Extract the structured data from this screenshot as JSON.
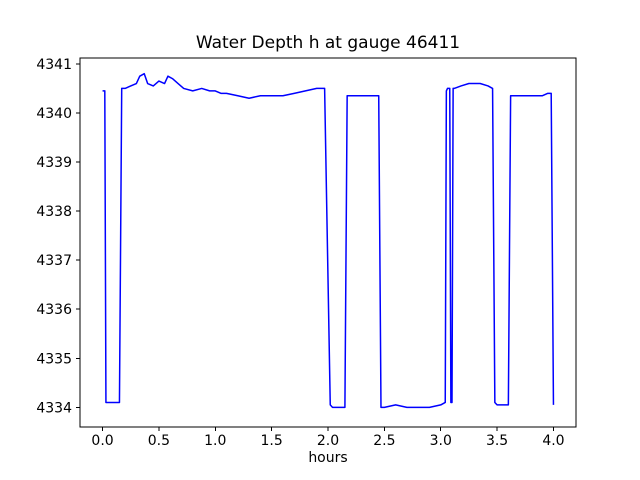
{
  "figure": {
    "background": "#ffffff",
    "axes_color": "#000000"
  },
  "chart_data": {
    "type": "line",
    "title": "Water Depth h at gauge 46411",
    "xlabel": "hours",
    "ylabel": "",
    "line_color": "#0000ff",
    "grid": false,
    "legend": null,
    "xlim": [
      -0.2,
      4.2
    ],
    "ylim": [
      4333.6,
      4341.12
    ],
    "xticks": [
      0.0,
      0.5,
      1.0,
      1.5,
      2.0,
      2.5,
      3.0,
      3.5,
      4.0
    ],
    "xtick_labels": [
      "0.0",
      "0.5",
      "1.0",
      "1.5",
      "2.0",
      "2.5",
      "3.0",
      "3.5",
      "4.0"
    ],
    "yticks": [
      4334,
      4335,
      4336,
      4337,
      4338,
      4339,
      4340,
      4341
    ],
    "ytick_labels": [
      "4334",
      "4335",
      "4336",
      "4337",
      "4338",
      "4339",
      "4340",
      "4341"
    ],
    "x": [
      0.0,
      0.02,
      0.03,
      0.15,
      0.17,
      0.2,
      0.25,
      0.3,
      0.33,
      0.37,
      0.4,
      0.45,
      0.5,
      0.55,
      0.58,
      0.62,
      0.67,
      0.72,
      0.8,
      0.88,
      0.95,
      1.0,
      1.05,
      1.1,
      1.2,
      1.3,
      1.4,
      1.5,
      1.6,
      1.7,
      1.8,
      1.9,
      1.97,
      2.02,
      2.04,
      2.15,
      2.17,
      2.3,
      2.45,
      2.47,
      2.5,
      2.6,
      2.7,
      2.8,
      2.9,
      3.0,
      3.04,
      3.05,
      3.06,
      3.08,
      3.09,
      3.1,
      3.11,
      3.12,
      3.18,
      3.25,
      3.35,
      3.42,
      3.46,
      3.48,
      3.5,
      3.6,
      3.62,
      3.7,
      3.8,
      3.9,
      3.95,
      3.98,
      4.0
    ],
    "y": [
      4340.45,
      4340.45,
      4334.1,
      4334.1,
      4340.5,
      4340.5,
      4340.55,
      4340.6,
      4340.75,
      4340.8,
      4340.6,
      4340.55,
      4340.65,
      4340.6,
      4340.75,
      4340.7,
      4340.6,
      4340.5,
      4340.45,
      4340.5,
      4340.45,
      4340.45,
      4340.4,
      4340.4,
      4340.35,
      4340.3,
      4340.35,
      4340.35,
      4340.35,
      4340.4,
      4340.45,
      4340.5,
      4340.5,
      4334.05,
      4334.0,
      4334.0,
      4340.35,
      4340.35,
      4340.35,
      4334.0,
      4334.0,
      4334.05,
      4334.0,
      4334.0,
      4334.0,
      4334.05,
      4334.1,
      4340.45,
      4340.5,
      4340.5,
      4334.1,
      4334.1,
      4340.5,
      4340.5,
      4340.55,
      4340.6,
      4340.6,
      4340.55,
      4340.5,
      4334.1,
      4334.05,
      4334.05,
      4340.35,
      4340.35,
      4340.35,
      4340.35,
      4340.4,
      4340.4,
      4334.05
    ]
  }
}
